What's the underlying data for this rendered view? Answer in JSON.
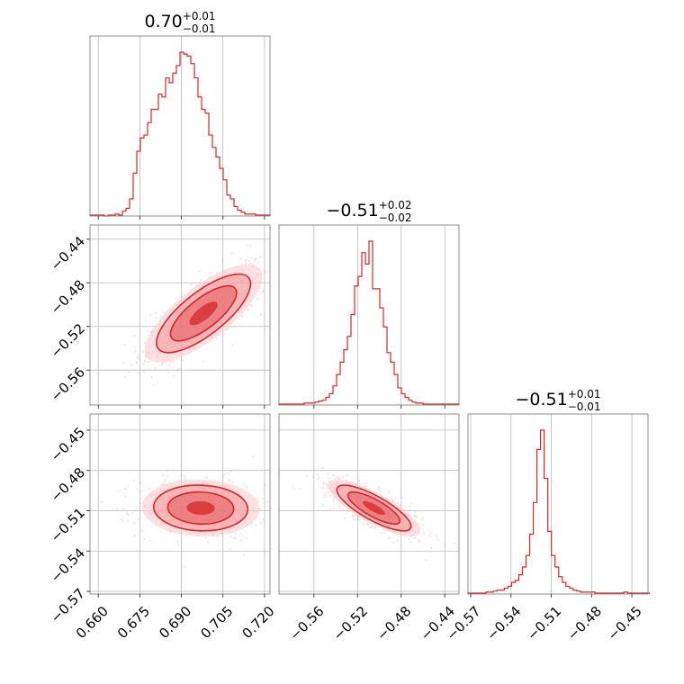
{
  "chart_data": {
    "type": "corner",
    "color": "#d62728",
    "parameters": [
      {
        "title": {
          "value": "0.70",
          "plus": "+0.01",
          "minus": "−0.01"
        },
        "range": [
          0.657,
          0.722
        ],
        "ticks": [
          {
            "v": 0.66,
            "label": "0.660"
          },
          {
            "v": 0.675,
            "label": "0.675"
          },
          {
            "v": 0.69,
            "label": "0.690"
          },
          {
            "v": 0.705,
            "label": "0.705"
          },
          {
            "v": 0.72,
            "label": "0.720"
          }
        ],
        "hist": {
          "edges_start": 0.657,
          "bin_width": 0.0013,
          "counts": [
            1,
            1,
            1,
            1,
            0,
            1,
            1,
            2,
            1,
            5,
            8,
            18,
            45,
            68,
            82,
            85,
            98,
            112,
            112,
            128,
            125,
            145,
            140,
            150,
            158,
            172,
            170,
            168,
            160,
            145,
            125,
            112,
            108,
            85,
            72,
            62,
            50,
            38,
            22,
            18,
            10,
            6,
            4,
            2,
            2,
            2,
            1,
            1,
            1,
            1
          ]
        }
      },
      {
        "title": {
          "value": "−0.51",
          "plus": "+0.02",
          "minus": "−0.02"
        },
        "range": [
          -0.592,
          -0.427
        ],
        "ticks": [
          {
            "v": -0.56,
            "label": "−0.56"
          },
          {
            "v": -0.52,
            "label": "−0.52"
          },
          {
            "v": -0.48,
            "label": "−0.48"
          },
          {
            "v": -0.44,
            "label": "−0.44"
          }
        ],
        "hist": {
          "edges_start": -0.592,
          "bin_width": 0.0033,
          "counts": [
            1,
            1,
            1,
            1,
            1,
            1,
            1,
            2,
            2,
            2,
            3,
            4,
            5,
            8,
            12,
            20,
            32,
            45,
            58,
            72,
            95,
            125,
            135,
            160,
            148,
            172,
            122,
            122,
            102,
            82,
            55,
            45,
            32,
            18,
            12,
            8,
            5,
            3,
            2,
            2,
            1,
            1,
            1,
            1,
            1,
            1,
            1,
            1,
            1,
            1
          ]
        }
      },
      {
        "title": {
          "value": "−0.51",
          "plus": "+0.01",
          "minus": "−0.01"
        },
        "range": [
          -0.572,
          -0.438
        ],
        "ticks": [
          {
            "v": -0.57,
            "label": "−0.57"
          },
          {
            "v": -0.54,
            "label": "−0.54"
          },
          {
            "v": -0.51,
            "label": "−0.51"
          },
          {
            "v": -0.48,
            "label": "−0.48"
          },
          {
            "v": -0.45,
            "label": "−0.45"
          }
        ],
        "hist": {
          "edges_start": -0.572,
          "bin_width": 0.0027,
          "counts": [
            1,
            1,
            1,
            1,
            1,
            2,
            2,
            3,
            4,
            4,
            6,
            8,
            12,
            14,
            20,
            28,
            40,
            62,
            95,
            150,
            170,
            120,
            65,
            40,
            28,
            18,
            12,
            8,
            6,
            4,
            3,
            2,
            2,
            2,
            2,
            1,
            1,
            1,
            1,
            1,
            1,
            1,
            1,
            2,
            1,
            1,
            1,
            1,
            1,
            1
          ]
        }
      }
    ],
    "pairs": [
      {
        "x": 0,
        "y": 1,
        "rho": 0.75,
        "mean": [
          0.698,
          -0.508
        ],
        "sd": [
          0.0085,
          0.018
        ]
      },
      {
        "x": 0,
        "y": 2,
        "rho": -0.05,
        "mean": [
          0.697,
          -0.508
        ],
        "sd": [
          0.0085,
          0.0085
        ]
      },
      {
        "x": 1,
        "y": 2,
        "rho": -0.8,
        "mean": [
          -0.505,
          -0.508
        ],
        "sd": [
          0.017,
          0.0085
        ]
      }
    ]
  }
}
